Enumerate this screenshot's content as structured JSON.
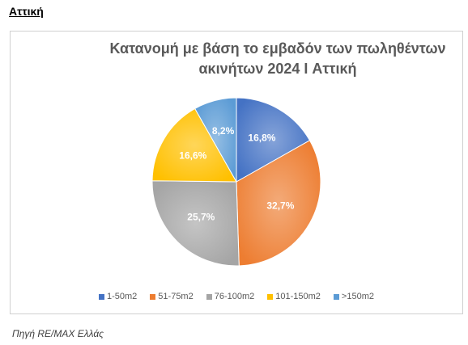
{
  "header": "Αττική",
  "source": "Πηγή RE/MAX Ελλάς",
  "chart_data": {
    "type": "pie",
    "title": "Κατανομή με βάση το εμβαδόν των πωληθέντων ακινήτων 2024 I Αττική",
    "categories": [
      "1-50m2",
      "51-75m2",
      "76-100m2",
      "101-150m2",
      ">150m2"
    ],
    "values": [
      16.8,
      32.7,
      25.7,
      16.6,
      8.2
    ],
    "value_labels": [
      "16,8%",
      "32,7%",
      "25,7%",
      "16,6%",
      "8,2%"
    ],
    "colors": [
      "#4472c4",
      "#ed7d31",
      "#a5a5a5",
      "#ffc000",
      "#5b9bd5"
    ],
    "legend": "bottom"
  }
}
